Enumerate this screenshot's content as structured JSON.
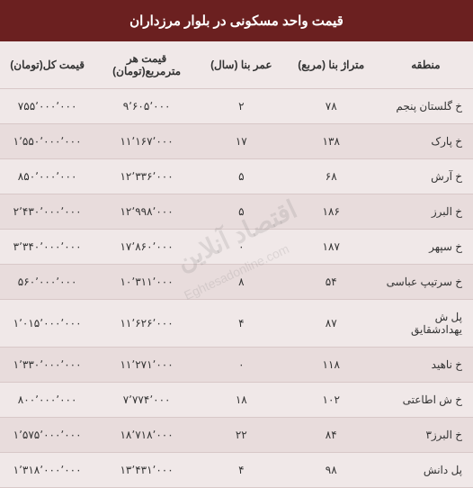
{
  "title": "قیمت واحد مسکونی در بلوار مرزداران",
  "columns": {
    "region": "منطقه",
    "area": "متراژ بنا (مربع)",
    "age": "عمر بنا (سال)",
    "price_per_sqm": "قیمت هر مترمربع(تومان)",
    "total_price": "قیمت کل(تومان)"
  },
  "rows": [
    {
      "region": "خ گلستان پنجم",
      "area": "۷۸",
      "age": "۲",
      "price_per_sqm": "۹٬۶۰۵٬۰۰۰",
      "total_price": "۷۵۵٬۰۰۰٬۰۰۰"
    },
    {
      "region": "خ پارک",
      "area": "۱۳۸",
      "age": "۱۷",
      "price_per_sqm": "۱۱٬۱۶۷٬۰۰۰",
      "total_price": "۱٬۵۵۰٬۰۰۰٬۰۰۰"
    },
    {
      "region": "خ آرش",
      "area": "۶۸",
      "age": "۵",
      "price_per_sqm": "۱۲٬۳۳۶٬۰۰۰",
      "total_price": "۸۵۰٬۰۰۰٬۰۰۰"
    },
    {
      "region": "خ البرز",
      "area": "۱۸۶",
      "age": "۵",
      "price_per_sqm": "۱۲٬۹۹۸٬۰۰۰",
      "total_price": "۲٬۴۳۰٬۰۰۰٬۰۰۰"
    },
    {
      "region": "خ سپهر",
      "area": "۱۸۷",
      "age": "۰",
      "price_per_sqm": "۱۷٬۸۶۰٬۰۰۰",
      "total_price": "۳٬۳۴۰٬۰۰۰٬۰۰۰"
    },
    {
      "region": "خ سرتیپ عباسی",
      "area": "۵۴",
      "age": "۸",
      "price_per_sqm": "۱۰٬۳۱۱٬۰۰۰",
      "total_price": "۵۶۰٬۰۰۰٬۰۰۰"
    },
    {
      "region": "پل ش یهدادشقایق",
      "area": "۸۷",
      "age": "۴",
      "price_per_sqm": "۱۱٬۶۲۶٬۰۰۰",
      "total_price": "۱٬۰۱۵٬۰۰۰٬۰۰۰"
    },
    {
      "region": "خ ناهید",
      "area": "۱۱۸",
      "age": "۰",
      "price_per_sqm": "۱۱٬۲۷۱٬۰۰۰",
      "total_price": "۱٬۳۳۰٬۰۰۰٬۰۰۰"
    },
    {
      "region": "خ ش اطاعتی",
      "area": "۱۰۲",
      "age": "۱۸",
      "price_per_sqm": "۷٬۷۷۴٬۰۰۰",
      "total_price": "۸۰۰٬۰۰۰٬۰۰۰"
    },
    {
      "region": "خ البرز۳",
      "area": "۸۴",
      "age": "۲۲",
      "price_per_sqm": "۱۸٬۷۱۸٬۰۰۰",
      "total_price": "۱٬۵۷۵٬۰۰۰٬۰۰۰"
    },
    {
      "region": "پل دانش",
      "area": "۹۸",
      "age": "۴",
      "price_per_sqm": "۱۳٬۴۳۱٬۰۰۰",
      "total_price": "۱٬۳۱۸٬۰۰۰٬۰۰۰"
    }
  ],
  "watermark": {
    "main": "اقتصاد آنلاین",
    "sub": "Eghtesadonline.com"
  },
  "colors": {
    "header_bg": "#6b2020",
    "header_text": "#ffffff",
    "row_odd": "#f0e8e8",
    "row_even": "#e8dcdc",
    "border": "#d8c8c8",
    "text": "#333333"
  },
  "fonts": {
    "title_size": 15,
    "header_size": 12,
    "cell_size": 12
  }
}
